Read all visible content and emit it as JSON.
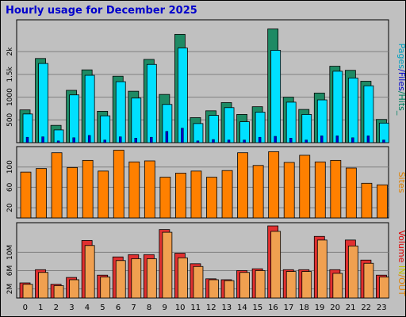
{
  "title": "Hourly usage for December 2025",
  "colors": {
    "background": "#c0c0c0",
    "title": "#0000cc",
    "pages": "#00a0c0",
    "files": "#0000cc",
    "hits": "#008060",
    "hits_bar": "#1e8a64",
    "files_bar": "#00e0ff",
    "pages_bar": "#0000cc",
    "sites": "#ff8000",
    "sites_label": "#e08000",
    "kb_out": "#e03030",
    "kb_in": "#f0a050",
    "in_label": "#c0c000",
    "out_label": "#e08000",
    "volume_label": "#e00000"
  },
  "chart_data": [
    {
      "type": "bar",
      "categories": [
        "0",
        "1",
        "2",
        "3",
        "4",
        "5",
        "6",
        "7",
        "8",
        "9",
        "10",
        "11",
        "12",
        "13",
        "14",
        "15",
        "16",
        "17",
        "18",
        "19",
        "20",
        "21",
        "22",
        "23"
      ],
      "series": [
        {
          "name": "Hits",
          "values": [
            720,
            1850,
            380,
            1150,
            1600,
            690,
            1460,
            1130,
            1830,
            1060,
            2380,
            550,
            700,
            880,
            620,
            790,
            2500,
            1000,
            730,
            1090,
            1680,
            1590,
            1350,
            510
          ]
        },
        {
          "name": "Files",
          "values": [
            630,
            1740,
            280,
            1050,
            1480,
            590,
            1340,
            980,
            1720,
            840,
            2080,
            420,
            600,
            770,
            460,
            670,
            2030,
            890,
            620,
            940,
            1570,
            1420,
            1250,
            430
          ]
        },
        {
          "name": "Pages",
          "values": [
            120,
            130,
            40,
            110,
            160,
            60,
            130,
            100,
            120,
            250,
            320,
            40,
            70,
            60,
            60,
            120,
            140,
            100,
            60,
            150,
            150,
            110,
            150,
            60
          ]
        }
      ],
      "yticks": [
        "500",
        "1000",
        "1.5k",
        "2k"
      ],
      "ylim": [
        0,
        2700
      ],
      "legend": [
        "Pages",
        "/",
        "Files",
        "/",
        "Hits",
        "_"
      ]
    },
    {
      "type": "bar",
      "categories": [
        "0",
        "1",
        "2",
        "3",
        "4",
        "5",
        "6",
        "7",
        "8",
        "9",
        "10",
        "11",
        "12",
        "13",
        "14",
        "15",
        "16",
        "17",
        "18",
        "19",
        "20",
        "21",
        "22",
        "23"
      ],
      "series": [
        {
          "name": "Sites",
          "values": [
            90,
            97,
            128,
            99,
            113,
            92,
            133,
            110,
            112,
            80,
            88,
            92,
            80,
            93,
            128,
            103,
            130,
            109,
            123,
            110,
            113,
            98,
            68,
            65
          ]
        }
      ],
      "yticks": [
        "20",
        "60",
        "100"
      ],
      "ylim": [
        0,
        140
      ],
      "legend": [
        "Sites"
      ]
    },
    {
      "type": "bar",
      "categories": [
        "0",
        "1",
        "2",
        "3",
        "4",
        "5",
        "6",
        "7",
        "8",
        "9",
        "10",
        "11",
        "12",
        "13",
        "14",
        "15",
        "16",
        "17",
        "18",
        "19",
        "20",
        "21",
        "22",
        "23"
      ],
      "series": [
        {
          "name": "KB OUT",
          "values": [
            3.3,
            6.2,
            3.0,
            4.5,
            12.6,
            5.0,
            9.0,
            9.5,
            9.5,
            15.0,
            9.8,
            7.5,
            4.2,
            4.0,
            6.0,
            6.4,
            15.8,
            6.2,
            6.2,
            13.5,
            6.2,
            12.7,
            8.3,
            5.0
          ]
        },
        {
          "name": "KB IN",
          "values": [
            3.0,
            5.6,
            2.7,
            4.0,
            11.5,
            4.6,
            8.2,
            8.6,
            8.6,
            14.4,
            8.8,
            6.9,
            4.0,
            3.8,
            5.6,
            6.0,
            14.6,
            5.8,
            5.8,
            12.7,
            5.4,
            11.4,
            7.6,
            4.6
          ]
        }
      ],
      "yticks": [
        "2M",
        "6M",
        "10M"
      ],
      "ylim": [
        0,
        16.5
      ],
      "legend": [
        "Volume",
        "IN",
        "/",
        "OUT"
      ]
    }
  ]
}
